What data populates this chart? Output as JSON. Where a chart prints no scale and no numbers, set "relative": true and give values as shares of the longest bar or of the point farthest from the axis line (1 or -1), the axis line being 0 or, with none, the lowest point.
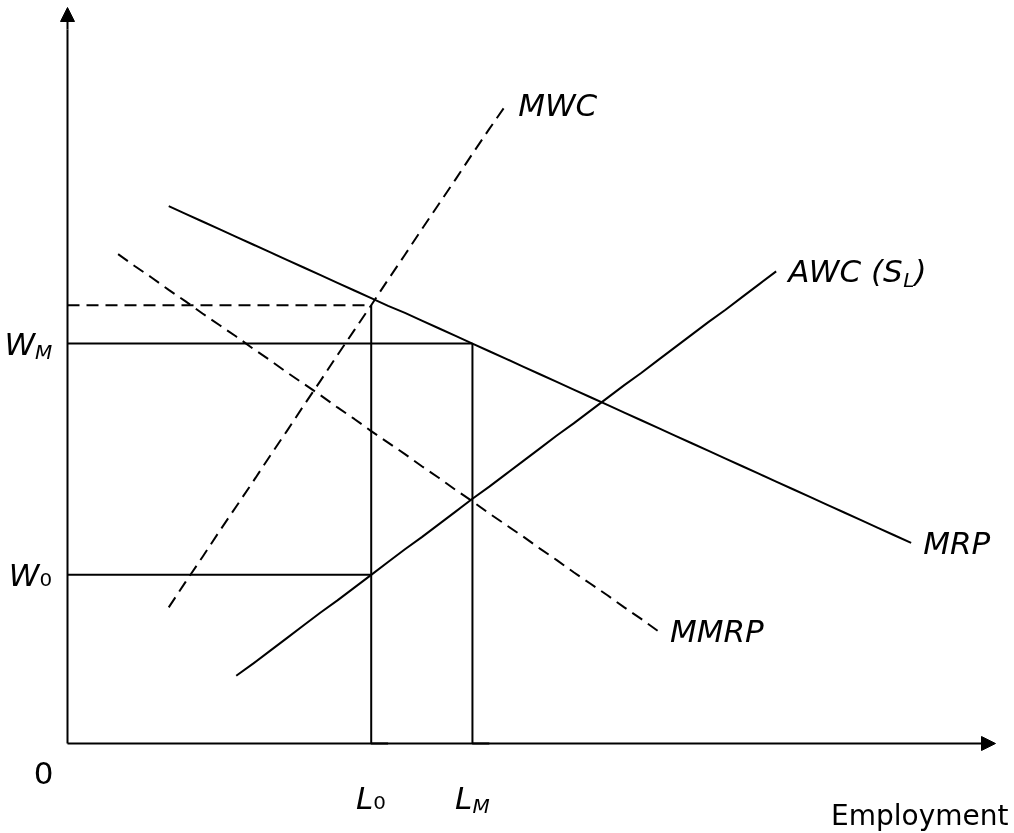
{
  "chart_data": {
    "type": "line",
    "relative": true,
    "xlabel": "Employment",
    "categories": [
      null,
      null,
      null,
      null,
      null,
      null,
      null,
      null,
      null,
      null,
      null,
      null,
      null,
      null,
      null,
      null,
      null,
      null,
      "L₀",
      null,
      null,
      null,
      null,
      null,
      "L$_{M}$",
      null,
      null,
      null,
      null,
      null,
      null,
      null,
      null,
      null,
      null,
      null,
      null,
      null,
      null,
      null,
      null,
      null,
      null,
      null,
      null,
      null,
      null,
      null,
      null,
      null,
      null
    ],
    "annotations": [
      "0"
    ],
    "series": [
      {
        "name": "MWC",
        "color": "#000000",
        "line_style": "dashed",
        "values": [
          null,
          null,
          null,
          null,
          null,
          null,
          0.213,
          0.253,
          0.292,
          0.332,
          0.371,
          0.41,
          0.45,
          0.489,
          0.529,
          0.568,
          0.608,
          0.647,
          0.686,
          0.726,
          0.765,
          0.805,
          0.844,
          0.883,
          0.923,
          0.962,
          1.0,
          null,
          null,
          null,
          null,
          null,
          null,
          null,
          null,
          null,
          null,
          null,
          null,
          null,
          null,
          null,
          null,
          null,
          null,
          null,
          null,
          null,
          null,
          null,
          null
        ]
      },
      {
        "name": "AWC (S$_{L}$)",
        "color": "#000000",
        "line_style": "solid",
        "values": [
          null,
          null,
          null,
          null,
          null,
          null,
          null,
          null,
          null,
          null,
          0.106,
          0.125,
          0.145,
          0.165,
          0.185,
          0.205,
          0.224,
          0.244,
          0.264,
          0.284,
          0.304,
          0.323,
          0.343,
          0.363,
          0.383,
          0.402,
          0.422,
          0.442,
          0.462,
          0.482,
          0.501,
          0.521,
          0.541,
          0.561,
          0.58,
          0.6,
          0.62,
          0.64,
          0.66,
          0.679,
          0.699,
          0.719,
          0.739,
          null,
          null,
          null,
          null,
          null,
          null,
          null,
          null
        ]
      },
      {
        "name": "MRP",
        "color": "#000000",
        "line_style": "solid",
        "values": [
          null,
          null,
          null,
          null,
          null,
          null,
          0.841,
          0.829,
          0.817,
          0.805,
          0.793,
          0.781,
          0.769,
          0.757,
          0.745,
          0.733,
          0.721,
          0.709,
          0.697,
          0.685,
          0.674,
          0.662,
          0.65,
          0.638,
          0.626,
          0.614,
          0.602,
          0.59,
          0.578,
          0.566,
          0.554,
          0.542,
          0.53,
          0.518,
          0.506,
          0.494,
          0.482,
          0.47,
          0.458,
          0.446,
          0.434,
          0.422,
          0.41,
          0.398,
          0.386,
          0.374,
          0.362,
          0.35,
          0.338,
          0.326,
          0.314
        ]
      },
      {
        "name": "MMRP",
        "color": "#000000",
        "line_style": "dashed",
        "values": [
          null,
          null,
          null,
          0.766,
          0.747,
          0.729,
          0.71,
          0.692,
          0.673,
          0.655,
          0.637,
          0.618,
          0.6,
          0.581,
          0.563,
          0.545,
          0.526,
          0.508,
          0.489,
          0.471,
          0.453,
          0.434,
          0.416,
          0.397,
          0.379,
          0.36,
          0.342,
          0.324,
          0.305,
          0.287,
          0.268,
          0.25,
          0.232,
          0.213,
          0.195,
          0.176,
          null,
          null,
          null,
          null,
          null,
          null,
          null,
          null,
          null,
          null,
          null,
          null,
          null,
          null,
          null
        ]
      },
      {
        "color": "#000000",
        "line_style": "dashed",
        "values": [
          0.686,
          0.686,
          0.686,
          0.686,
          0.686,
          0.686,
          0.686,
          0.686,
          0.686,
          0.686,
          0.686,
          0.686,
          0.686,
          0.686,
          0.686,
          0.686,
          0.686,
          0.686,
          0.686,
          null,
          null,
          null,
          null,
          null,
          null,
          null,
          null,
          null,
          null,
          null,
          null,
          null,
          null,
          null,
          null,
          null,
          null,
          null,
          null,
          null,
          null,
          null,
          null,
          null,
          null,
          null,
          null,
          null,
          null,
          null,
          null
        ]
      },
      {
        "name": "W$_{M}$",
        "color": "#000000",
        "line_style": "solid",
        "values": [
          0.626,
          0.626,
          0.626,
          0.626,
          0.626,
          0.626,
          0.626,
          0.626,
          0.626,
          0.626,
          0.626,
          0.626,
          0.626,
          0.626,
          0.626,
          0.626,
          0.626,
          0.626,
          0.626,
          0.626,
          0.626,
          0.626,
          0.626,
          0.626,
          0.626,
          null,
          null,
          null,
          null,
          null,
          null,
          null,
          null,
          null,
          null,
          null,
          null,
          null,
          null,
          null,
          null,
          null,
          null,
          null,
          null,
          null,
          null,
          null,
          null,
          null,
          null
        ]
      },
      {
        "name": "W₀",
        "color": "#000000",
        "line_style": "solid",
        "values": [
          0.264,
          0.264,
          0.264,
          0.264,
          0.264,
          0.264,
          0.264,
          0.264,
          0.264,
          0.264,
          0.264,
          0.264,
          0.264,
          0.264,
          0.264,
          0.264,
          0.264,
          0.264,
          0.264,
          null,
          null,
          null,
          null,
          null,
          null,
          null,
          null,
          null,
          null,
          null,
          null,
          null,
          null,
          null,
          null,
          null,
          null,
          null,
          null,
          null,
          null,
          null,
          null,
          null,
          null,
          null,
          null,
          null,
          null,
          null,
          null
        ]
      },
      {
        "type": "step",
        "color": "#000000",
        "line_style": "solid",
        "values": [
          null,
          null,
          null,
          null,
          null,
          null,
          null,
          null,
          null,
          null,
          null,
          null,
          null,
          null,
          null,
          null,
          null,
          null,
          0.686,
          0,
          null,
          null,
          null,
          null,
          null,
          null,
          null,
          null,
          null,
          null,
          null,
          null,
          null,
          null,
          null,
          null,
          null,
          null,
          null,
          null,
          null,
          null,
          null,
          null,
          null,
          null,
          null,
          null,
          null,
          null,
          null
        ]
      },
      {
        "type": "step",
        "color": "#000000",
        "line_style": "solid",
        "values": [
          null,
          null,
          null,
          null,
          null,
          null,
          null,
          null,
          null,
          null,
          null,
          null,
          null,
          null,
          null,
          null,
          null,
          null,
          null,
          null,
          null,
          null,
          null,
          null,
          0.626,
          0,
          null,
          null,
          null,
          null,
          null,
          null,
          null,
          null,
          null,
          null,
          null,
          null,
          null,
          null,
          null,
          null,
          null,
          null,
          null,
          null,
          null,
          null,
          null,
          null,
          null
        ]
      }
    ]
  }
}
